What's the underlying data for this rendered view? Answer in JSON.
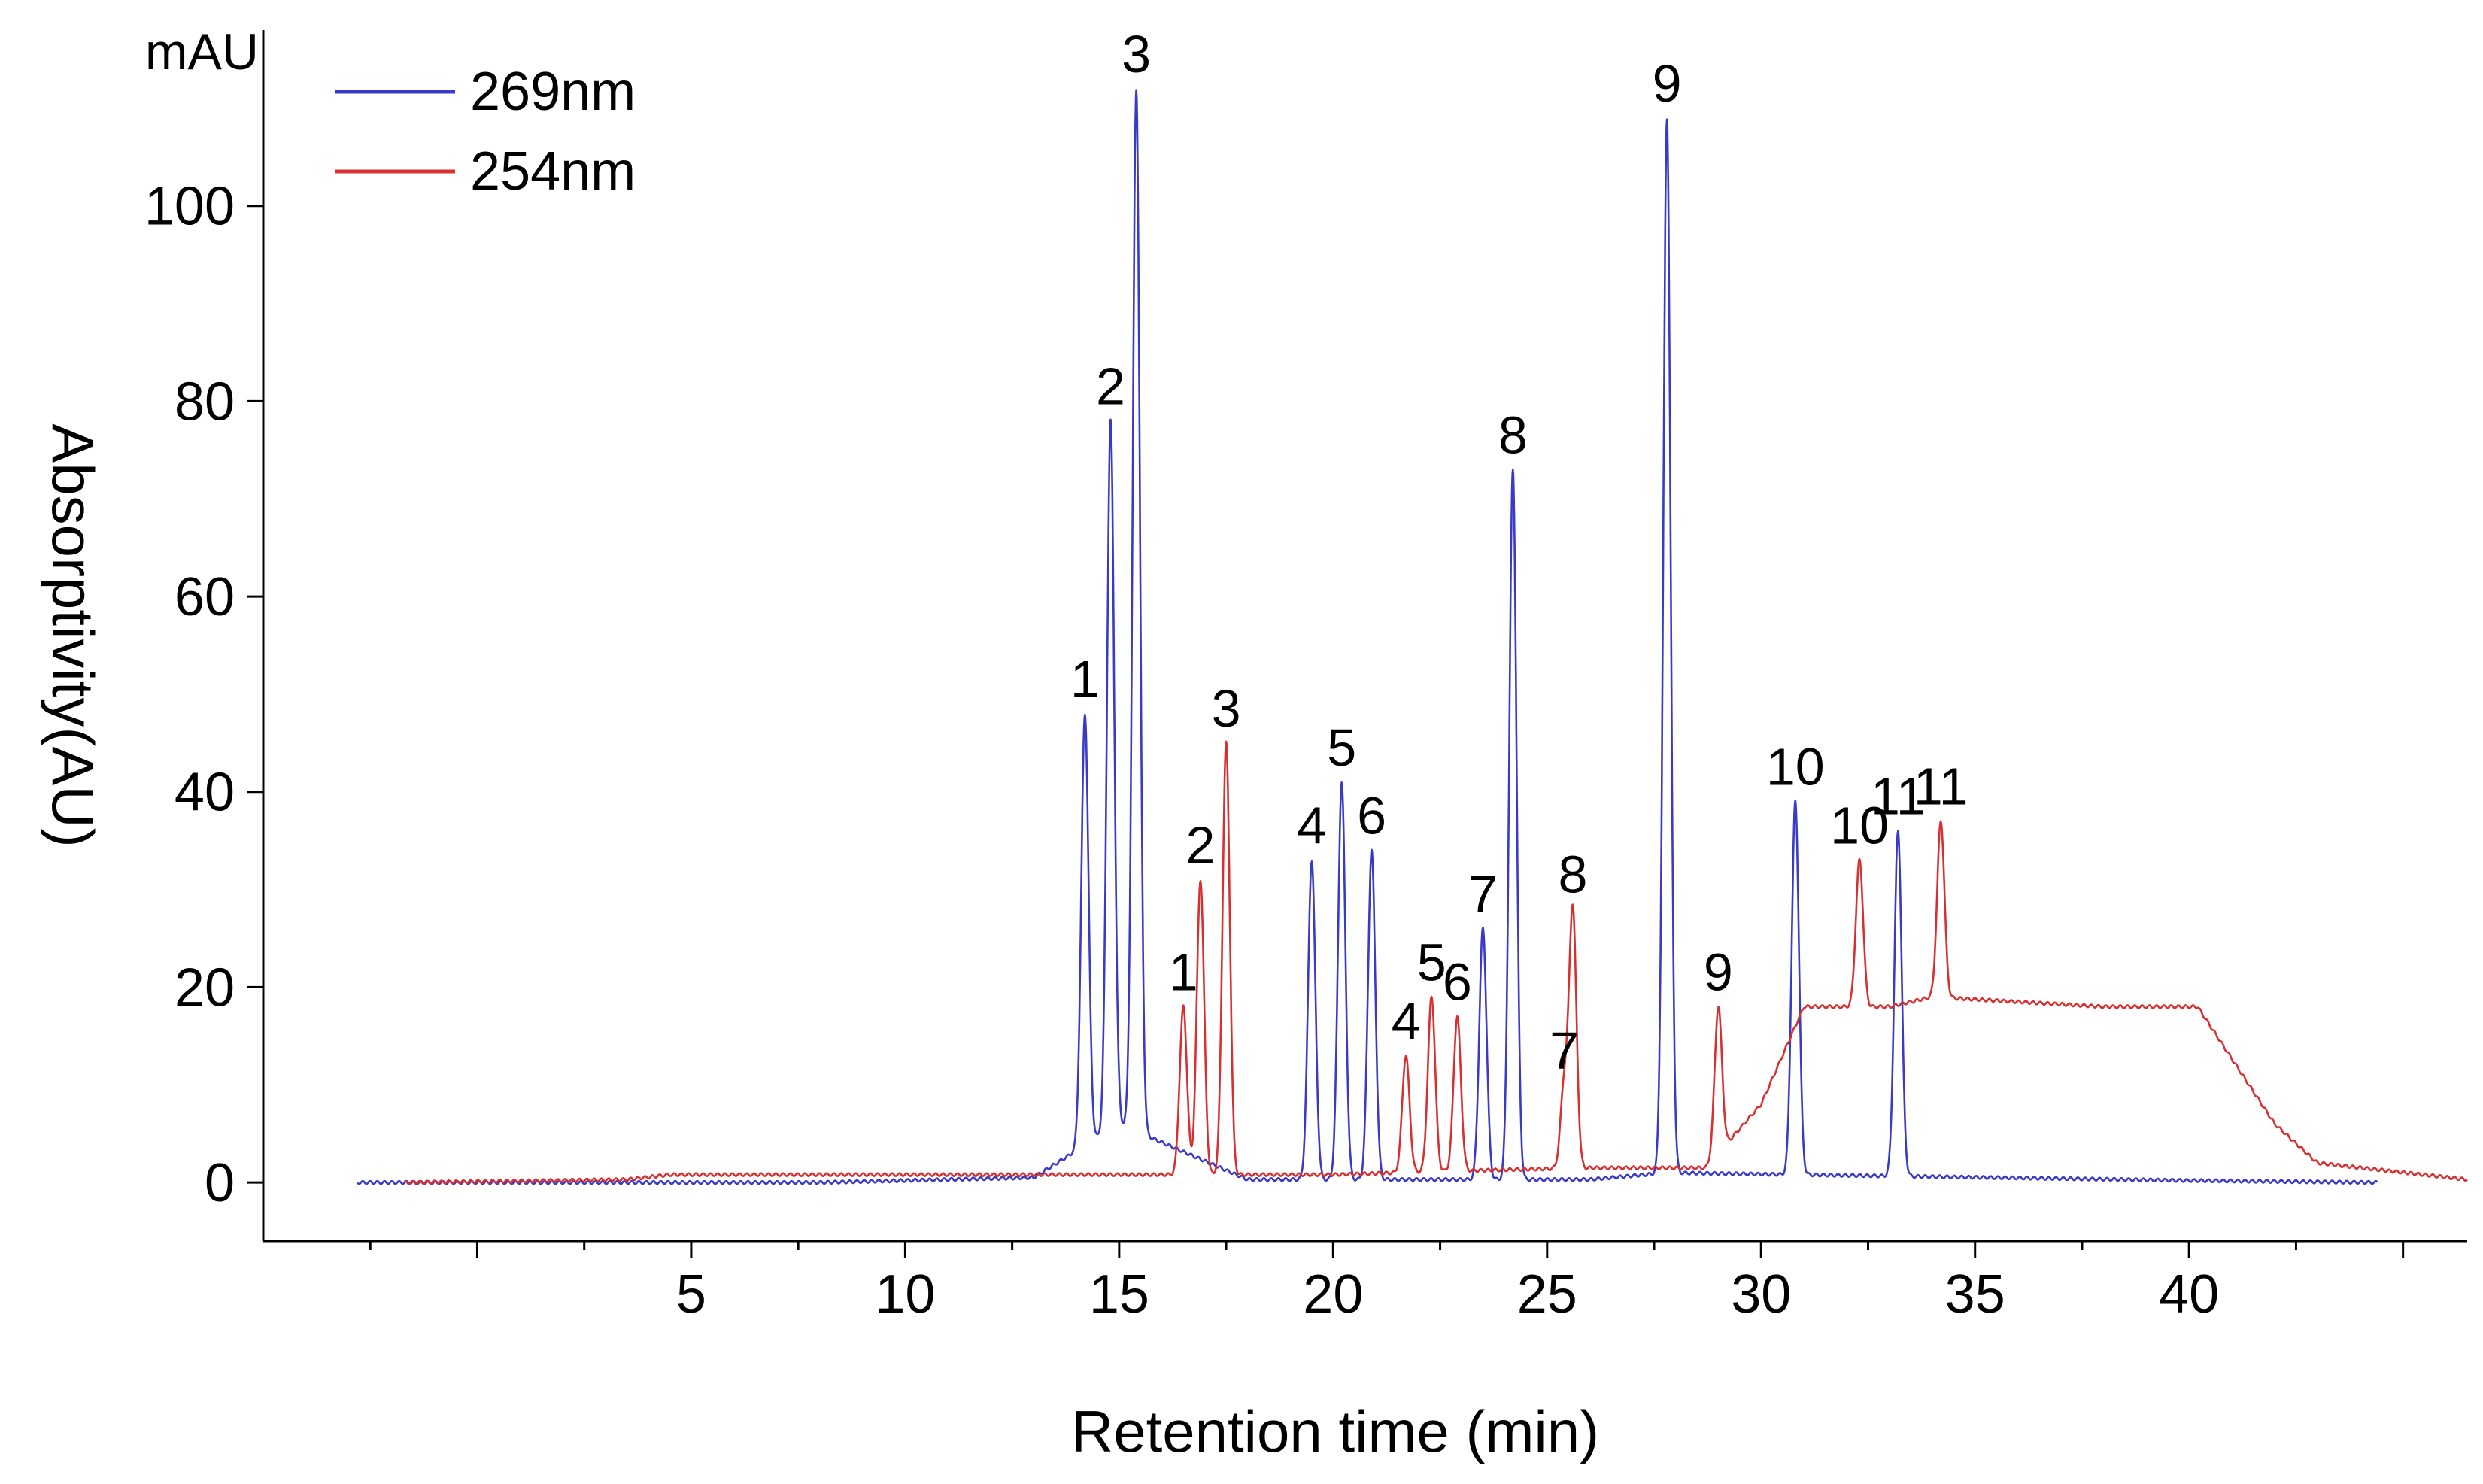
{
  "chart_data": {
    "type": "line",
    "title": "",
    "xlabel": "Retention time (min)",
    "ylabel": "Absorptivity(AU)",
    "yunit": "mAU",
    "xlim": [
      -5,
      46.5
    ],
    "ylim": [
      -6,
      118
    ],
    "xticks": [
      0,
      5,
      10,
      15,
      20,
      25,
      30,
      35,
      40,
      45
    ],
    "xtick_labels": [
      "5",
      "10",
      "15",
      "20",
      "25",
      "30",
      "35",
      "40"
    ],
    "yticks": [
      0,
      20,
      40,
      60,
      80,
      100
    ],
    "ytick_labels": [
      "0",
      "20",
      "40",
      "60",
      "80",
      "100"
    ],
    "legend": {
      "position": "top-left",
      "entries": [
        "269nm",
        "254nm"
      ]
    },
    "series": [
      {
        "name": "269nm",
        "color": "#3a3ac8",
        "x_range": [
          -2.8,
          44.4
        ],
        "baseline": [
          [
            -2.8,
            0
          ],
          [
            8,
            0
          ],
          [
            13,
            0.5
          ],
          [
            15,
            6
          ],
          [
            18,
            0.3
          ],
          [
            26,
            0.3
          ],
          [
            27.8,
            1
          ],
          [
            40,
            0.2
          ],
          [
            44.4,
            0
          ]
        ],
        "peaks": [
          {
            "label": "1",
            "rt": 14.2,
            "height": 48
          },
          {
            "label": "2",
            "rt": 14.8,
            "height": 78
          },
          {
            "label": "3",
            "rt": 15.4,
            "height": 112
          },
          {
            "label": "4",
            "rt": 19.5,
            "height": 33
          },
          {
            "label": "5",
            "rt": 20.2,
            "height": 41
          },
          {
            "label": "6",
            "rt": 20.9,
            "height": 34
          },
          {
            "label": "7",
            "rt": 23.5,
            "height": 26
          },
          {
            "label": "8",
            "rt": 24.2,
            "height": 73
          },
          {
            "label": "9",
            "rt": 27.8,
            "height": 109
          },
          {
            "label": "10",
            "rt": 30.8,
            "height": 39
          },
          {
            "label": "11",
            "rt": 33.2,
            "height": 36
          }
        ]
      },
      {
        "name": "254nm",
        "color": "#d83030",
        "x_range": [
          -1.7,
          46.5
        ],
        "baseline": [
          [
            -1.7,
            0
          ],
          [
            3.5,
            0.3
          ],
          [
            4.5,
            0.8
          ],
          [
            10,
            0.8
          ],
          [
            16,
            0.8
          ],
          [
            20,
            0.8
          ],
          [
            23,
            1.2
          ],
          [
            26,
            1.5
          ],
          [
            28.7,
            1.5
          ],
          [
            30,
            8
          ],
          [
            31,
            18
          ],
          [
            33,
            18
          ],
          [
            34,
            19
          ],
          [
            38,
            18
          ],
          [
            40.2,
            18
          ],
          [
            42,
            6
          ],
          [
            43,
            2
          ],
          [
            46.5,
            0.3
          ]
        ],
        "peaks": [
          {
            "label": "1",
            "rt": 16.5,
            "height": 18
          },
          {
            "label": "2",
            "rt": 16.9,
            "height": 31
          },
          {
            "label": "3",
            "rt": 17.5,
            "height": 45
          },
          {
            "label": "4",
            "rt": 21.7,
            "height": 13
          },
          {
            "label": "5",
            "rt": 22.3,
            "height": 19
          },
          {
            "label": "6",
            "rt": 22.9,
            "height": 17
          },
          {
            "label": "7",
            "rt": 25.4,
            "height": 10
          },
          {
            "label": "8",
            "rt": 25.6,
            "height": 28
          },
          {
            "label": "9",
            "rt": 29.0,
            "height": 18
          },
          {
            "label": "10",
            "rt": 32.3,
            "height": 33
          },
          {
            "label": "11",
            "rt": 34.2,
            "height": 37
          }
        ]
      }
    ]
  }
}
